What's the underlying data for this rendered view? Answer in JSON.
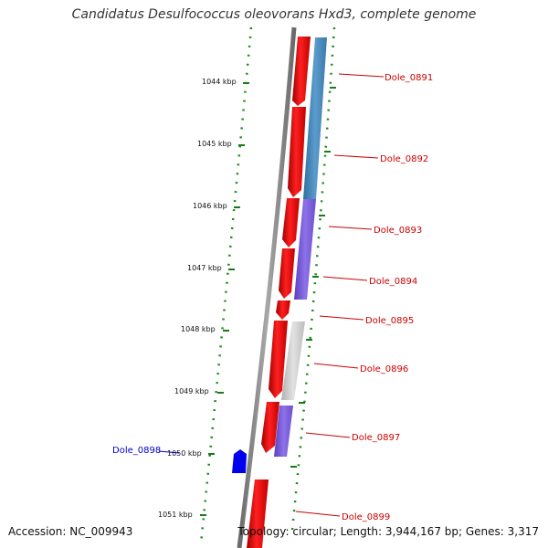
{
  "title": "Candidatus Desulfococcus oleovorans Hxd3, complete genome",
  "footer": {
    "accession": "Accession: NC_009943",
    "stats": "Topology: circular; Length: 3,944,167 bp; Genes: 3,317"
  },
  "ruler": {
    "ticks": [
      "1044 kbp",
      "1045 kbp",
      "1046 kbp",
      "1047 kbp",
      "1048 kbp",
      "1049 kbp",
      "1050 kbp",
      "1051 kbp"
    ]
  },
  "genes": [
    {
      "name": "Dole_0891",
      "strand": "forward",
      "color": "#cc0000"
    },
    {
      "name": "Dole_0892",
      "strand": "forward",
      "color": "#cc0000"
    },
    {
      "name": "Dole_0893",
      "strand": "forward",
      "color": "#cc0000"
    },
    {
      "name": "Dole_0894",
      "strand": "forward",
      "color": "#cc0000"
    },
    {
      "name": "Dole_0895",
      "strand": "forward",
      "color": "#cc0000"
    },
    {
      "name": "Dole_0896",
      "strand": "forward",
      "color": "#cc0000"
    },
    {
      "name": "Dole_0897",
      "strand": "forward",
      "color": "#cc0000"
    },
    {
      "name": "Dole_0898",
      "strand": "reverse",
      "color": "#0000cc"
    },
    {
      "name": "Dole_0899",
      "strand": "forward",
      "color": "#cc0000"
    }
  ],
  "colors": {
    "forward_gene": "#ff0000",
    "reverse_gene": "#0000ee",
    "backbone": "#888888",
    "tick": "#1a7a1a",
    "cog_blue": "#4a8ab8",
    "cog_purple": "#7b5fd6",
    "cog_gray": "#c8c8c8"
  }
}
